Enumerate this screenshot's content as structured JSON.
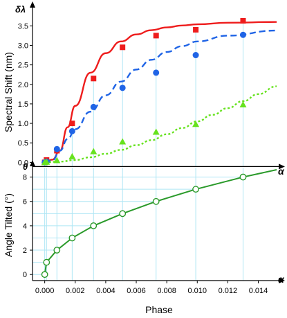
{
  "chart_data": [
    {
      "type": "scatter",
      "axis_symbol": "δλ",
      "axis_end_symbol": "α",
      "ylabel": "Spectral Shift (nm)",
      "xlim": [
        -0.0008,
        0.0152
      ],
      "ylim": [
        -0.1,
        3.95
      ],
      "yticks": [
        "0.0",
        "0.5",
        "1.0",
        "1.5",
        "2.0",
        "2.5",
        "3.0",
        "3.5"
      ],
      "grid": "vertical drop lines at data points",
      "colors": {
        "square": "#ee1c1c",
        "circle": "#1f64e6",
        "triangle": "#66e21e"
      },
      "series": [
        {
          "marker": "square",
          "line": "solid",
          "x": [
            0.0,
            0.00012,
            0.0008,
            0.0018,
            0.0032,
            0.0051,
            0.0073,
            0.0099,
            0.013
          ],
          "values": [
            0.0,
            0.06,
            0.3,
            1.0,
            2.15,
            2.95,
            3.25,
            3.4,
            3.63
          ],
          "fit": {
            "x": [
              0.0,
              0.0005,
              0.001,
              0.0015,
              0.002,
              0.003,
              0.004,
              0.005,
              0.006,
              0.007,
              0.008,
              0.009,
              0.01,
              0.012,
              0.0152
            ],
            "y": [
              0.0,
              0.07,
              0.3,
              0.9,
              1.45,
              2.3,
              2.8,
              3.1,
              3.28,
              3.39,
              3.46,
              3.51,
              3.54,
              3.58,
              3.6
            ]
          }
        },
        {
          "marker": "circle",
          "line": "dashed",
          "x": [
            0.0,
            0.00012,
            0.0008,
            0.0018,
            0.0032,
            0.0051,
            0.0073,
            0.0099,
            0.013
          ],
          "values": [
            0.0,
            0.02,
            0.34,
            0.8,
            1.42,
            1.91,
            2.3,
            2.75,
            3.27
          ],
          "fit": {
            "x": [
              0.0,
              0.0005,
              0.001,
              0.0015,
              0.002,
              0.003,
              0.004,
              0.005,
              0.006,
              0.007,
              0.008,
              0.009,
              0.01,
              0.012,
              0.0152
            ],
            "y": [
              0.0,
              0.05,
              0.3,
              0.6,
              0.85,
              1.3,
              1.72,
              2.07,
              2.38,
              2.63,
              2.83,
              2.98,
              3.1,
              3.25,
              3.38
            ]
          }
        },
        {
          "marker": "triangle",
          "line": "dotted",
          "x": [
            0.0,
            0.00012,
            0.0008,
            0.0018,
            0.0032,
            0.0051,
            0.0073,
            0.0099,
            0.013
          ],
          "values": [
            0.0,
            0.01,
            0.05,
            0.15,
            0.28,
            0.53,
            0.78,
            0.98,
            1.48
          ],
          "fit": {
            "x": [
              0.0,
              0.001,
              0.002,
              0.003,
              0.004,
              0.005,
              0.006,
              0.007,
              0.008,
              0.009,
              0.01,
              0.011,
              0.012,
              0.013,
              0.014,
              0.0152
            ],
            "y": [
              0.0,
              0.02,
              0.06,
              0.13,
              0.22,
              0.32,
              0.44,
              0.57,
              0.72,
              0.88,
              1.05,
              1.22,
              1.39,
              1.57,
              1.75,
              1.95
            ]
          }
        }
      ]
    },
    {
      "type": "line",
      "axis_symbol": "θ",
      "axis_end_symbol": "α",
      "xlabel": "Phase",
      "ylabel": "Angle Tilted (°)",
      "xlim": [
        -0.0008,
        0.0152
      ],
      "ylim": [
        -0.5,
        9.0
      ],
      "xticks": [
        "0.000",
        "0.002",
        "0.004",
        "0.006",
        "0.008",
        "0.010",
        "0.012",
        "0.014"
      ],
      "yticks": [
        "0",
        "2",
        "4",
        "6",
        "8"
      ],
      "grid": "vertical and horizontal drop lines at data points",
      "color": "#2a9a2a",
      "series": [
        {
          "marker": "open-circle",
          "x": [
            0.0,
            0.00012,
            0.0008,
            0.0018,
            0.0032,
            0.0051,
            0.0073,
            0.0099,
            0.013
          ],
          "values": [
            0,
            1,
            2,
            3,
            4,
            5,
            6,
            7,
            8
          ],
          "curve_end": {
            "x": 0.0152,
            "y": 8.6
          }
        }
      ]
    }
  ]
}
